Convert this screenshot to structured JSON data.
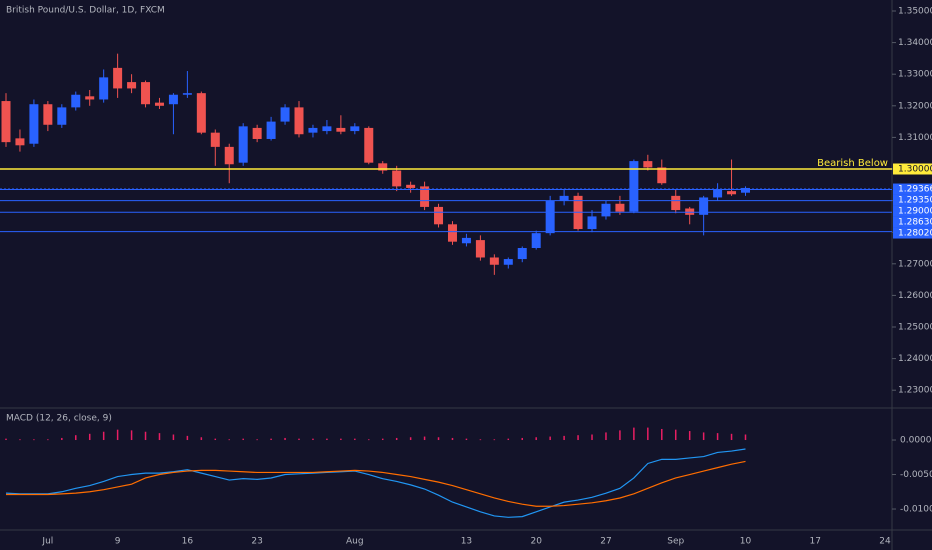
{
  "chart_data": [
    {
      "type": "candlestick",
      "title": "British Pound/U.S. Dollar, 1D, FXCM",
      "up_color": "#2962ff",
      "down_color": "#ef5350",
      "open": [
        1.3215,
        1.3097,
        1.308,
        1.3205,
        1.314,
        1.3195,
        1.323,
        1.322,
        1.332,
        1.3275,
        1.3275,
        1.321,
        1.3205,
        1.3235,
        1.324,
        1.3115,
        1.307,
        1.302,
        1.313,
        1.3095,
        1.315,
        1.3195,
        1.3115,
        1.312,
        1.313,
        1.312,
        1.313,
        1.3018,
        1.2995,
        1.295,
        1.2945,
        1.288,
        1.2825,
        1.2765,
        1.2775,
        1.272,
        1.2697,
        1.2715,
        1.275,
        1.2797,
        1.29,
        1.2915,
        1.281,
        1.285,
        1.289,
        1.2865,
        1.3025,
        1.3005,
        1.2915,
        1.2875,
        1.2855,
        1.291,
        1.293,
        1.2925
      ],
      "high": [
        1.324,
        1.3125,
        1.322,
        1.3215,
        1.3205,
        1.3245,
        1.325,
        1.3315,
        1.3365,
        1.33,
        1.328,
        1.3225,
        1.324,
        1.331,
        1.3245,
        1.3125,
        1.308,
        1.3145,
        1.314,
        1.3165,
        1.3205,
        1.3215,
        1.314,
        1.3155,
        1.317,
        1.3145,
        1.3135,
        1.3025,
        1.301,
        1.296,
        1.296,
        1.289,
        1.2835,
        1.2795,
        1.279,
        1.273,
        1.272,
        1.2755,
        1.2805,
        1.2915,
        1.2935,
        1.2925,
        1.287,
        1.29,
        1.2915,
        1.303,
        1.3045,
        1.303,
        1.2935,
        1.288,
        1.2915,
        1.2955,
        1.303,
        1.2945
      ],
      "low": [
        1.307,
        1.3055,
        1.307,
        1.312,
        1.313,
        1.3185,
        1.32,
        1.321,
        1.3225,
        1.324,
        1.3195,
        1.319,
        1.311,
        1.3225,
        1.311,
        1.301,
        1.2955,
        1.301,
        1.3085,
        1.309,
        1.314,
        1.31,
        1.31,
        1.311,
        1.311,
        1.311,
        1.3015,
        1.2985,
        1.293,
        1.2925,
        1.287,
        1.2815,
        1.276,
        1.2755,
        1.271,
        1.2665,
        1.2685,
        1.2705,
        1.2745,
        1.279,
        1.2885,
        1.2805,
        1.28,
        1.284,
        1.2855,
        1.286,
        1.2995,
        1.295,
        1.286,
        1.2825,
        1.279,
        1.29,
        1.2915,
        1.2915
      ],
      "close": [
        1.3085,
        1.3075,
        1.3205,
        1.314,
        1.3195,
        1.3235,
        1.322,
        1.329,
        1.3255,
        1.3255,
        1.3205,
        1.32,
        1.3235,
        1.324,
        1.3115,
        1.307,
        1.3015,
        1.3135,
        1.3095,
        1.315,
        1.3195,
        1.311,
        1.313,
        1.3135,
        1.3118,
        1.3135,
        1.302,
        1.2995,
        1.2945,
        1.294,
        1.288,
        1.2825,
        1.277,
        1.2782,
        1.272,
        1.2697,
        1.2715,
        1.275,
        1.2797,
        1.29,
        1.2915,
        1.281,
        1.285,
        1.289,
        1.2865,
        1.3025,
        1.3005,
        1.2955,
        1.287,
        1.2855,
        1.291,
        1.2935,
        1.292,
        1.294
      ],
      "ylim": [
        1.22437,
        1.35348
      ],
      "yticks": [
        {
          "value": 1.23,
          "label": "1.23000"
        },
        {
          "value": 1.24,
          "label": "1.24000"
        },
        {
          "value": 1.25,
          "label": "1.25000"
        },
        {
          "value": 1.26,
          "label": "1.26000"
        },
        {
          "value": 1.27,
          "label": "1.27000"
        },
        {
          "value": 1.28,
          "label": "1.28000"
        },
        {
          "value": 1.29,
          "label": "1.29000"
        },
        {
          "value": 1.3,
          "label": "1.30000"
        },
        {
          "value": 1.31,
          "label": "1.31000"
        },
        {
          "value": 1.32,
          "label": "1.32000"
        },
        {
          "value": 1.33,
          "label": "1.33000"
        },
        {
          "value": 1.34,
          "label": "1.34000"
        },
        {
          "value": 1.35,
          "label": "1.35000"
        }
      ],
      "xlim": [
        -0.43,
        63.5
      ],
      "xticks": [
        {
          "value": 3,
          "label": "Jul"
        },
        {
          "value": 8,
          "label": "9"
        },
        {
          "value": 13,
          "label": "16"
        },
        {
          "value": 18,
          "label": "23"
        },
        {
          "value": 25,
          "label": "Aug"
        },
        {
          "value": 33,
          "label": "13"
        },
        {
          "value": 38,
          "label": "20"
        },
        {
          "value": 43,
          "label": "27"
        },
        {
          "value": 48,
          "label": "Sep"
        },
        {
          "value": 53,
          "label": "10"
        },
        {
          "value": 58,
          "label": "17"
        },
        {
          "value": 63,
          "label": "24"
        }
      ],
      "levels": [
        {
          "value": 1.3,
          "label": "1.30000",
          "color": "#ffeb3b",
          "text": "Bearish Below"
        },
        {
          "value": 1.2935,
          "label": "1.29350",
          "color": "#2962ff"
        },
        {
          "value": 1.29366,
          "label": "1.29366",
          "color": "#2962ff"
        },
        {
          "value": 1.29,
          "label": "1.29000",
          "color": "#2962ff"
        },
        {
          "value": 1.2863,
          "label": "1.28630",
          "color": "#2962ff"
        },
        {
          "value": 1.2802,
          "label": "1.28020",
          "color": "#2962ff"
        }
      ]
    },
    {
      "type": "macd",
      "title": "MACD (12, 26, close, 9)",
      "ylim": [
        -0.01304,
        0.00464
      ],
      "yticks": [
        {
          "value": 0,
          "label": "0.0000"
        },
        {
          "value": -0.005,
          "label": "-0.0050"
        },
        {
          "value": -0.01,
          "label": "-0.0100"
        }
      ],
      "series": [
        {
          "color": "#2196f3",
          "values": [
            -0.0077,
            -0.0078,
            -0.0078,
            -0.0078,
            -0.0075,
            -0.007,
            -0.0066,
            -0.006,
            -0.0053,
            -0.005,
            -0.0048,
            -0.0048,
            -0.0046,
            -0.0043,
            -0.0048,
            -0.0053,
            -0.0058,
            -0.0056,
            -0.0057,
            -0.0055,
            -0.005,
            -0.0049,
            -0.0048,
            -0.0047,
            -0.0046,
            -0.0045,
            -0.005,
            -0.0056,
            -0.006,
            -0.0065,
            -0.0071,
            -0.008,
            -0.009,
            -0.0097,
            -0.0104,
            -0.011,
            -0.0112,
            -0.0111,
            -0.0104,
            -0.0097,
            -0.009,
            -0.0087,
            -0.0083,
            -0.0077,
            -0.007,
            -0.0055,
            -0.0034,
            -0.0028,
            -0.0028,
            -0.0026,
            -0.0024,
            -0.0018,
            -0.0016,
            -0.0013
          ]
        },
        {
          "color": "#ff6d00",
          "values": [
            -0.0079,
            -0.0079,
            -0.0079,
            -0.0079,
            -0.0078,
            -0.0077,
            -0.0075,
            -0.0072,
            -0.0068,
            -0.0064,
            -0.0055,
            -0.005,
            -0.0047,
            -0.0045,
            -0.0044,
            -0.0044,
            -0.0045,
            -0.0046,
            -0.0047,
            -0.0047,
            -0.0047,
            -0.0047,
            -0.0047,
            -0.0046,
            -0.0045,
            -0.0044,
            -0.0045,
            -0.0047,
            -0.005,
            -0.0053,
            -0.0057,
            -0.0061,
            -0.0066,
            -0.0072,
            -0.0078,
            -0.0084,
            -0.0089,
            -0.0093,
            -0.0096,
            -0.0096,
            -0.0095,
            -0.0093,
            -0.0091,
            -0.0088,
            -0.0084,
            -0.0078,
            -0.007,
            -0.0062,
            -0.0055,
            -0.005,
            -0.0045,
            -0.004,
            -0.0035,
            -0.0031
          ]
        }
      ],
      "histogram": {
        "color": "#e91e63",
        "values": [
          0.0002,
          0.0001,
          0.0001,
          0.0001,
          0.0003,
          0.0007,
          0.0009,
          0.0012,
          0.0015,
          0.0014,
          0.0012,
          0.001,
          0.0008,
          0.0006,
          0.0004,
          0.0002,
          0.0001,
          0.0002,
          0.0001,
          0.0002,
          0.0003,
          0.0002,
          0.0002,
          0.0002,
          0.0002,
          0.0002,
          0.0001,
          0.0002,
          0.0003,
          0.0004,
          0.0005,
          0.0004,
          0.0003,
          0.0002,
          0.0001,
          0.0001,
          0.0002,
          0.0003,
          0.0004,
          0.0005,
          0.0006,
          0.0007,
          0.0008,
          0.0011,
          0.0014,
          0.0018,
          0.0018,
          0.0016,
          0.0015,
          0.0013,
          0.0011,
          0.001,
          0.0009,
          0.0008
        ]
      }
    }
  ]
}
